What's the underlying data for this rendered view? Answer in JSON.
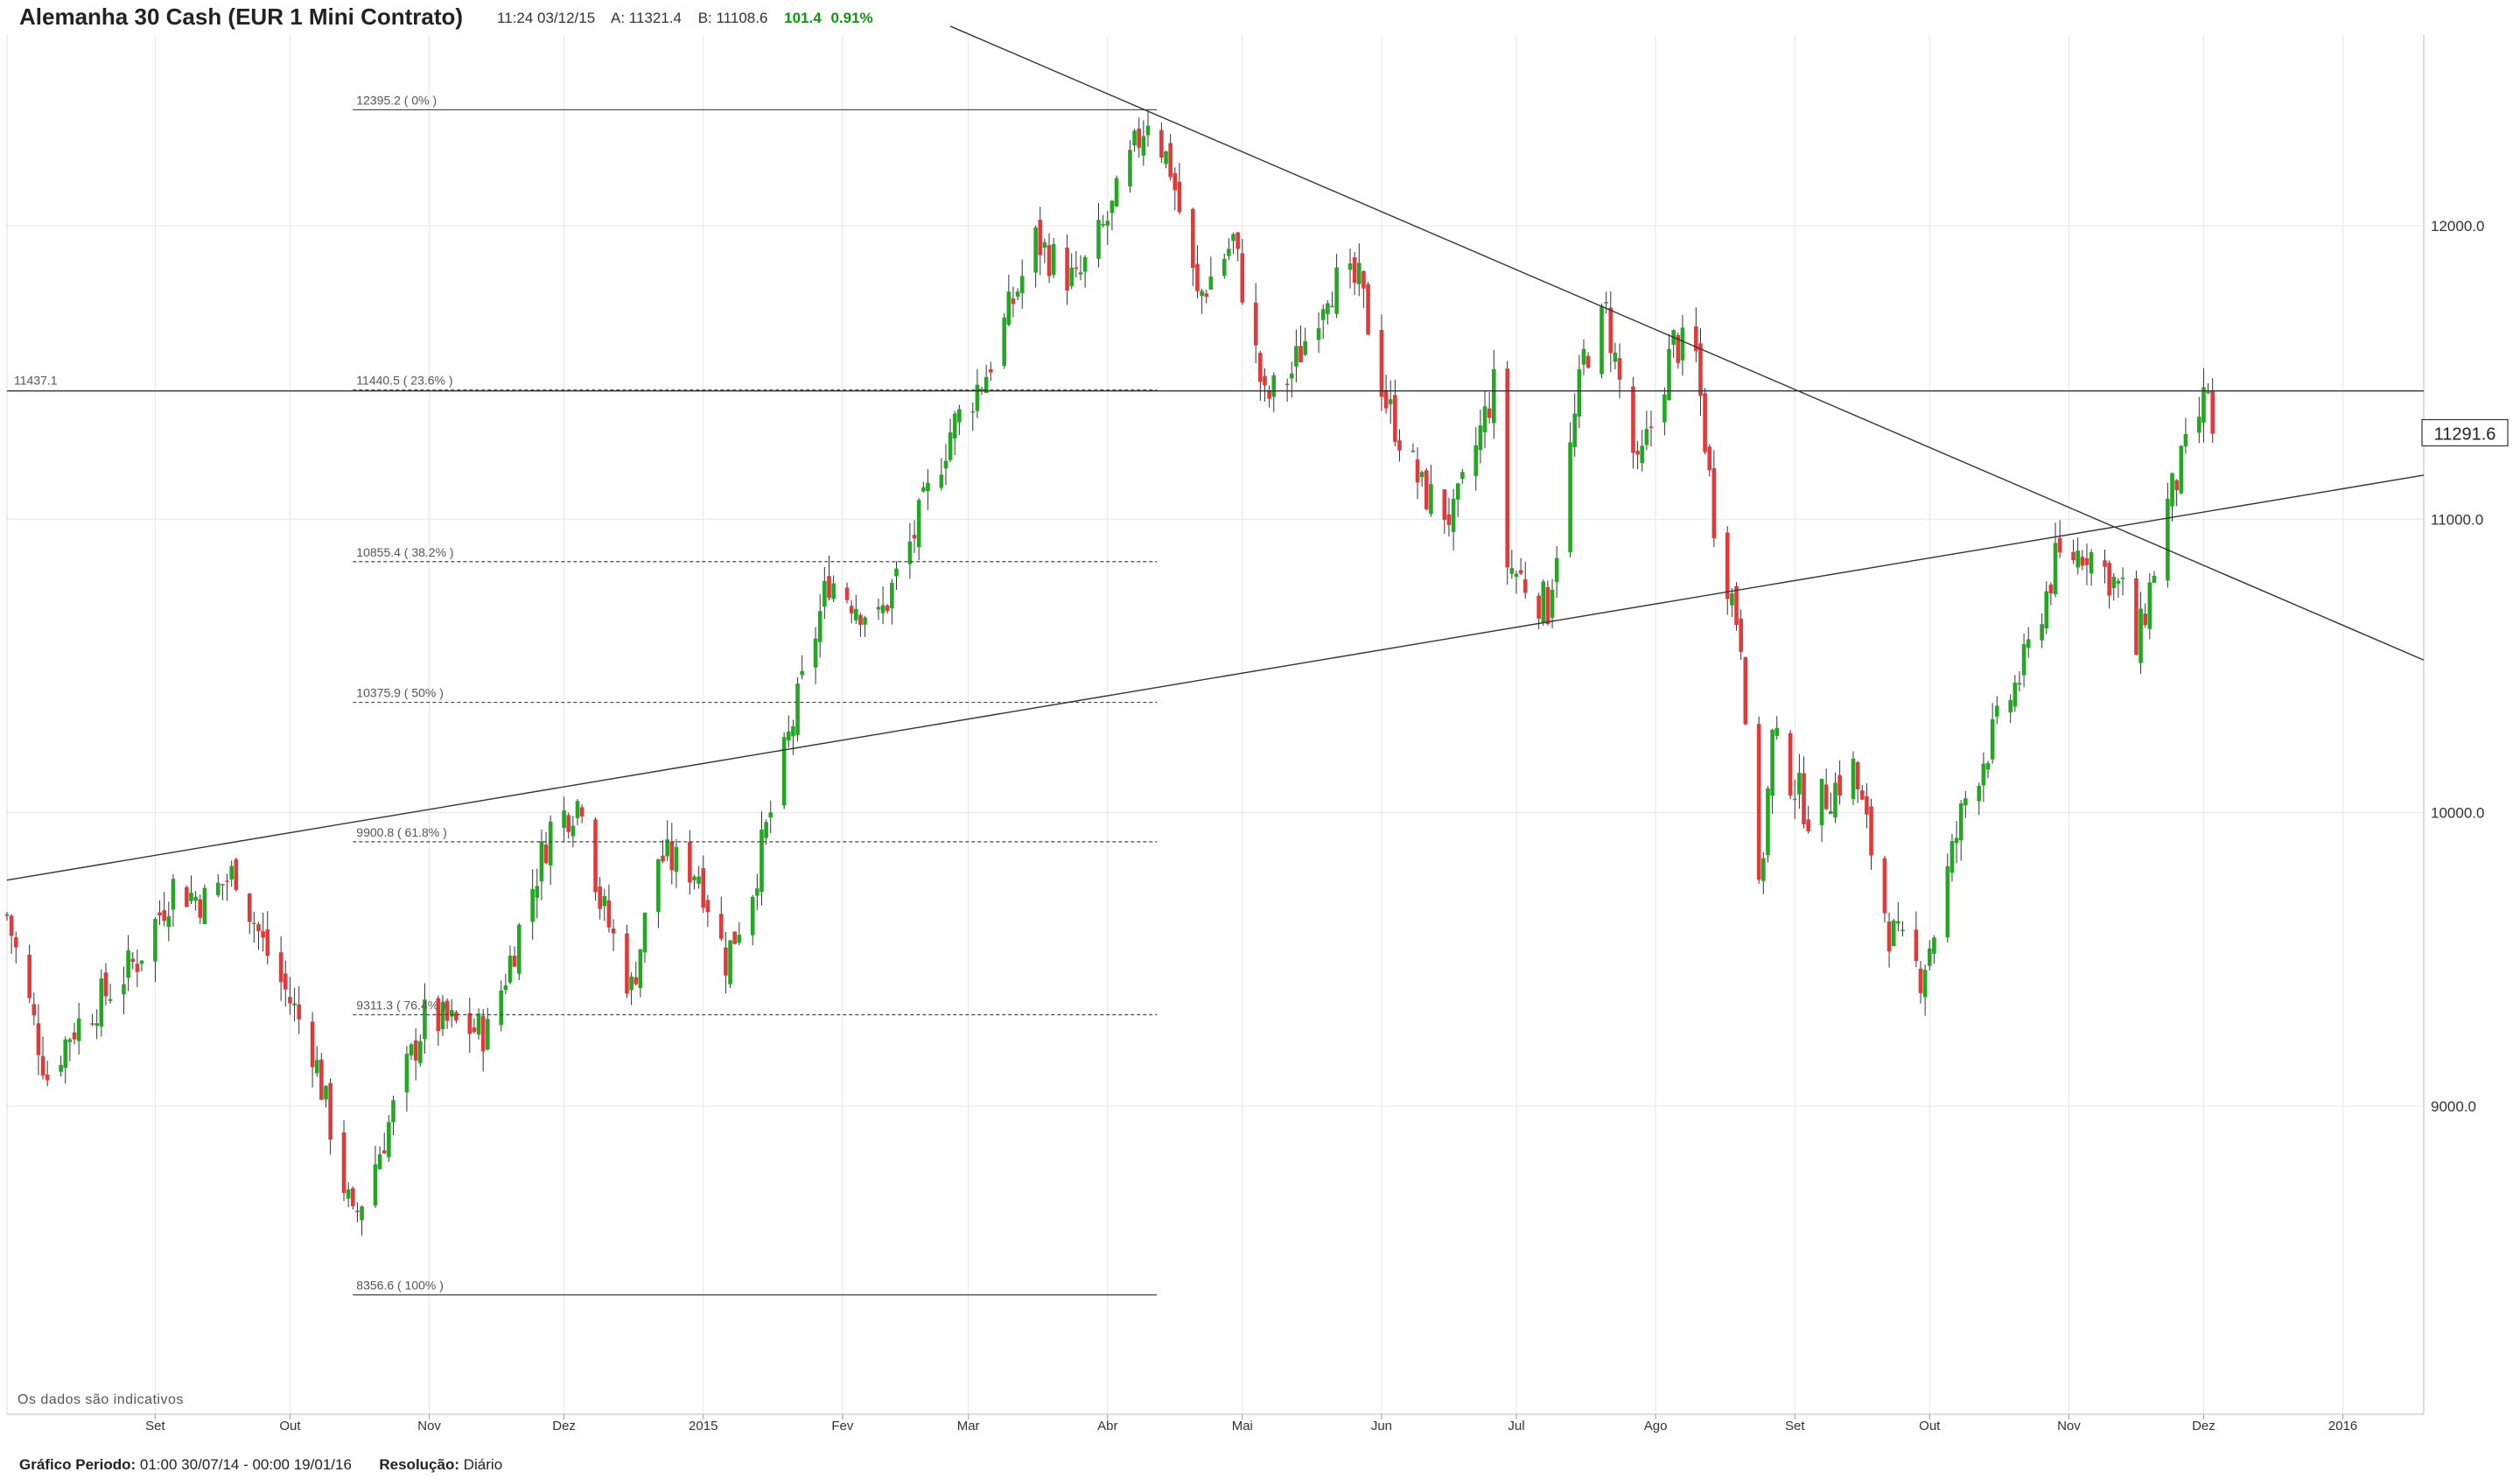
{
  "header": {
    "title": "Alemanha 30 Cash (EUR 1 Mini Contrato)",
    "time": "11:24 03/12/15",
    "ask": "A: 11321.4",
    "bid": "B: 11108.6",
    "change": "101.4",
    "change_pct": "0.91%"
  },
  "disclaimer": "Os dados são indicativos",
  "footer": {
    "period_label": "Gráfico Periodo:",
    "period_value": "01:00 30/07/14 - 00:00 19/01/16",
    "resolution_label": "Resolução:",
    "resolution_value": "Diário"
  },
  "colors": {
    "up": "#22a822",
    "down": "#e23a3a",
    "wick": "#333333",
    "grid": "#e6e6e6",
    "change": "#0a9a0a"
  },
  "chart_data": {
    "type": "candlestick",
    "instrument": "Alemanha 30 Cash (EUR 1 Mini Contrato)",
    "xlim": [
      "2014-07-30",
      "2016-01-19"
    ],
    "ylim": [
      7950,
      12650
    ],
    "y_ticks": [
      9000.0,
      10000.0,
      11000.0,
      12000.0
    ],
    "y_tick_labels": [
      "9000.0",
      "10000.0",
      "11000.0",
      "12000.0"
    ],
    "x_ticks": [
      {
        "date": "2014-09-01",
        "label": "Set"
      },
      {
        "date": "2014-10-01",
        "label": "Out"
      },
      {
        "date": "2014-11-01",
        "label": "Nov"
      },
      {
        "date": "2014-12-01",
        "label": "Dez"
      },
      {
        "date": "2015-01-01",
        "label": "2015"
      },
      {
        "date": "2015-02-01",
        "label": "Fev"
      },
      {
        "date": "2015-03-01",
        "label": "Mar"
      },
      {
        "date": "2015-04-01",
        "label": "Abr"
      },
      {
        "date": "2015-05-01",
        "label": "Mai"
      },
      {
        "date": "2015-06-01",
        "label": "Jun"
      },
      {
        "date": "2015-07-01",
        "label": "Jul"
      },
      {
        "date": "2015-08-01",
        "label": "Ago"
      },
      {
        "date": "2015-09-01",
        "label": "Set"
      },
      {
        "date": "2015-10-01",
        "label": "Out"
      },
      {
        "date": "2015-11-01",
        "label": "Nov"
      },
      {
        "date": "2015-12-01",
        "label": "Dez"
      },
      {
        "date": "2016-01-01",
        "label": "2016"
      }
    ],
    "last_price": 11291.6,
    "last_price_label": "11291.6",
    "horizontal_line": {
      "value": 11437.1,
      "label": "11437.1"
    },
    "fibonacci": {
      "start": "2014-10-15",
      "end": "2015-04-12",
      "levels": [
        {
          "value": 12395.2,
          "label": "12395.2 ( 0% )"
        },
        {
          "value": 11440.5,
          "label": "11440.5 ( 23.6% )"
        },
        {
          "value": 10855.4,
          "label": "10855.4 ( 38.2% )"
        },
        {
          "value": 10375.9,
          "label": "10375.9 ( 50% )"
        },
        {
          "value": 9900.8,
          "label": "9900.8 ( 61.8% )"
        },
        {
          "value": 9311.3,
          "label": "9311.3 ( 76.4% )"
        },
        {
          "value": 8356.6,
          "label": "8356.6 ( 100% )"
        }
      ]
    },
    "trendlines": [
      {
        "name": "descending",
        "from": [
          "2015-02-25",
          12680
        ],
        "to": [
          "2016-01-19",
          10520
        ]
      },
      {
        "name": "ascending",
        "from": [
          "2014-07-30",
          9770
        ],
        "to": [
          "2016-01-19",
          11150
        ]
      }
    ],
    "anchors": [
      [
        "2014-07-30",
        9650
      ],
      [
        "2014-08-08",
        9100
      ],
      [
        "2014-08-13",
        9250
      ],
      [
        "2014-08-28",
        9500
      ],
      [
        "2014-09-05",
        9750
      ],
      [
        "2014-09-12",
        9700
      ],
      [
        "2014-09-19",
        9800
      ],
      [
        "2014-09-25",
        9550
      ],
      [
        "2014-10-06",
        9200
      ],
      [
        "2014-10-15",
        8600
      ],
      [
        "2014-10-21",
        8850
      ],
      [
        "2014-10-31",
        9300
      ],
      [
        "2014-11-14",
        9250
      ],
      [
        "2014-11-28",
        9950
      ],
      [
        "2014-12-05",
        10050
      ],
      [
        "2014-12-09",
        9700
      ],
      [
        "2014-12-16",
        9400
      ],
      [
        "2014-12-22",
        9850
      ],
      [
        "2014-12-31",
        9800
      ],
      [
        "2015-01-06",
        9500
      ],
      [
        "2015-01-12",
        9750
      ],
      [
        "2015-01-20",
        10250
      ],
      [
        "2015-01-29",
        10800
      ],
      [
        "2015-02-09",
        10650
      ],
      [
        "2015-02-17",
        10950
      ],
      [
        "2015-02-25",
        11300
      ],
      [
        "2015-03-05",
        11500
      ],
      [
        "2015-03-16",
        11950
      ],
      [
        "2015-03-25",
        11800
      ],
      [
        "2015-04-02",
        12050
      ],
      [
        "2015-04-10",
        12380
      ],
      [
        "2015-04-15",
        12200
      ],
      [
        "2015-04-21",
        11750
      ],
      [
        "2015-04-29",
        11950
      ],
      [
        "2015-05-06",
        11400
      ],
      [
        "2015-05-12",
        11500
      ],
      [
        "2015-05-20",
        11800
      ],
      [
        "2015-05-27",
        11800
      ],
      [
        "2015-06-02",
        11400
      ],
      [
        "2015-06-10",
        11100
      ],
      [
        "2015-06-17",
        11000
      ],
      [
        "2015-06-26",
        11450
      ],
      [
        "2015-06-29",
        10850
      ],
      [
        "2015-07-08",
        10700
      ],
      [
        "2015-07-16",
        11550
      ],
      [
        "2015-07-21",
        11700
      ],
      [
        "2015-07-28",
        11150
      ],
      [
        "2015-08-05",
        11600
      ],
      [
        "2015-08-10",
        11550
      ],
      [
        "2015-08-14",
        11000
      ],
      [
        "2015-08-20",
        10600
      ],
      [
        "2015-08-24",
        9700
      ],
      [
        "2015-08-27",
        10250
      ],
      [
        "2015-09-04",
        10000
      ],
      [
        "2015-09-14",
        10150
      ],
      [
        "2015-09-22",
        9600
      ],
      [
        "2015-09-29",
        9450
      ],
      [
        "2015-10-02",
        9600
      ],
      [
        "2015-10-09",
        10050
      ],
      [
        "2015-10-22",
        10500
      ],
      [
        "2015-10-29",
        10850
      ],
      [
        "2015-11-05",
        10900
      ],
      [
        "2015-11-13",
        10750
      ],
      [
        "2015-11-16",
        10550
      ],
      [
        "2015-11-23",
        11050
      ],
      [
        "2015-11-30",
        11350
      ],
      [
        "2015-12-02",
        11450
      ],
      [
        "2015-12-03",
        11291.6
      ]
    ]
  }
}
